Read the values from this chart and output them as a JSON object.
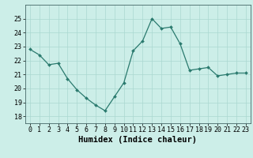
{
  "x": [
    0,
    1,
    2,
    3,
    4,
    5,
    6,
    7,
    8,
    9,
    10,
    11,
    12,
    13,
    14,
    15,
    16,
    17,
    18,
    19,
    20,
    21,
    22,
    23
  ],
  "y": [
    22.8,
    22.4,
    21.7,
    21.8,
    20.7,
    19.9,
    19.3,
    18.8,
    18.4,
    19.4,
    20.4,
    22.7,
    23.4,
    25.0,
    24.3,
    24.4,
    23.2,
    21.3,
    21.4,
    21.5,
    20.9,
    21.0,
    21.1,
    21.1
  ],
  "xlabel": "Humidex (Indice chaleur)",
  "ylim": [
    17.5,
    26.0
  ],
  "xlim": [
    -0.5,
    23.5
  ],
  "line_color": "#2a7a6e",
  "marker_color": "#2a7a6e",
  "bg_color": "#cceee8",
  "grid_color": "#aad8d0",
  "tick_labels": [
    "0",
    "1",
    "2",
    "3",
    "4",
    "5",
    "6",
    "7",
    "8",
    "9",
    "10",
    "11",
    "12",
    "13",
    "14",
    "15",
    "16",
    "17",
    "18",
    "19",
    "20",
    "21",
    "22",
    "23"
  ],
  "yticks": [
    18,
    19,
    20,
    21,
    22,
    23,
    24,
    25
  ],
  "xlabel_fontsize": 7.5,
  "tick_fontsize": 6.0
}
